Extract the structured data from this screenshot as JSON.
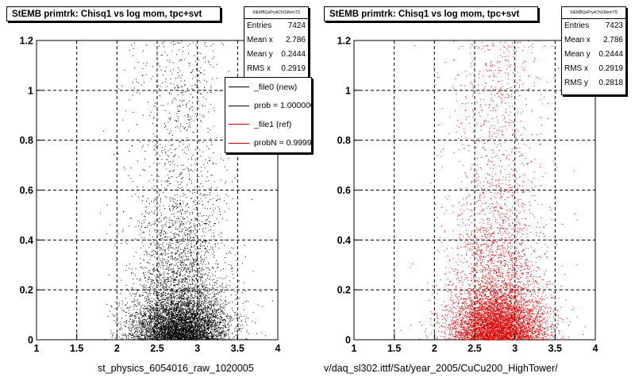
{
  "chart_data": [
    {
      "type": "scatter",
      "title": "StEMB primtrk: Chisq1 vs log mom, tpc+svt",
      "xlabel": "st_physics_6054016_raw_1020005",
      "ylabel": "",
      "xlim": [
        1,
        4
      ],
      "ylim": [
        0,
        1.2
      ],
      "xticks": [
        "1",
        "1.5",
        "2",
        "2.5",
        "3",
        "3.5",
        "4"
      ],
      "yticks": [
        "0",
        "0.2",
        "0.4",
        "0.6",
        "0.8",
        "1",
        "1.2"
      ],
      "grid": true,
      "marker_color": "#000000",
      "stats": {
        "name": "StEMBQaPrykChi1MomTS",
        "rows": [
          {
            "label": "Entries",
            "value": "7424"
          },
          {
            "label": "Mean x",
            "value": "2.786"
          },
          {
            "label": "Mean y",
            "value": "0.2444"
          },
          {
            "label": "RMS x",
            "value": "0.2919"
          }
        ]
      },
      "legend": {
        "placement": "right",
        "entries": [
          {
            "label": "_file0 (new)",
            "color": "#000000"
          },
          {
            "label": "prob = 1.000000",
            "color": "#000000"
          },
          {
            "label": "_file1 (ref)",
            "color": "#cc0000"
          },
          {
            "label": "probN = 0.999970",
            "color": "#cc0000"
          }
        ]
      },
      "series": [
        {
          "entries": 7424,
          "mean_x": 2.786,
          "mean_y": 0.2444,
          "rms_x": 0.2919,
          "rms_y": 0.2818
        }
      ]
    },
    {
      "type": "scatter",
      "title": "StEMB primtrk: Chisq1 vs log mom, tpc+svt",
      "xlabel": "v/daq_sl302.ittf/Sat/year_2005/CuCu200_HighTower/",
      "ylabel": "",
      "xlim": [
        1,
        4
      ],
      "ylim": [
        0,
        1.2
      ],
      "xticks": [
        "1",
        "1.5",
        "2",
        "2.5",
        "3",
        "3.5",
        "4"
      ],
      "yticks": [
        "0",
        "0.2",
        "0.4",
        "0.6",
        "0.8",
        "1",
        "1.2"
      ],
      "grid": true,
      "marker_color": "#dd0000",
      "stats": {
        "name": "StEMBQaPrykChi1MomTS",
        "rows": [
          {
            "label": "Entries",
            "value": "7423"
          },
          {
            "label": "Mean x",
            "value": "2.786"
          },
          {
            "label": "Mean y",
            "value": "0.2444"
          },
          {
            "label": "RMS x",
            "value": "0.2919"
          },
          {
            "label": "RMS y",
            "value": "0.2818"
          }
        ]
      },
      "series": [
        {
          "entries": 7423,
          "mean_x": 2.786,
          "mean_y": 0.2444,
          "rms_x": 0.2919,
          "rms_y": 0.2818
        }
      ]
    }
  ]
}
